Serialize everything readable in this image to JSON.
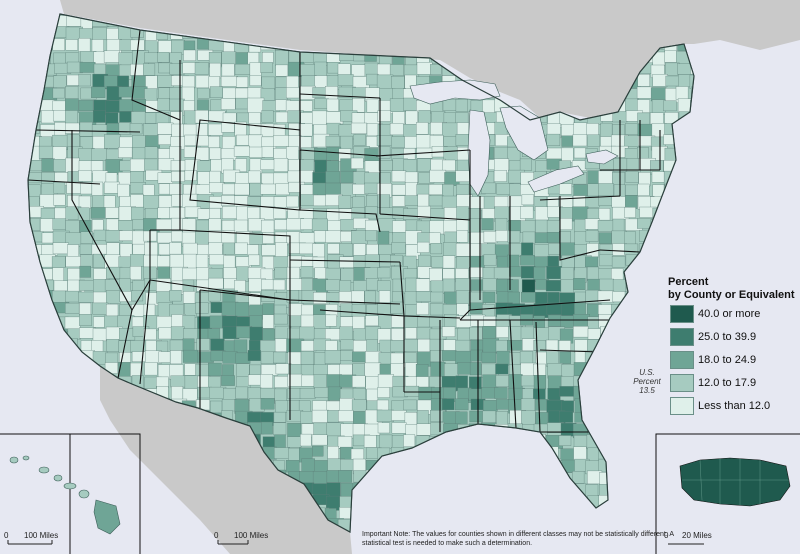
{
  "legend": {
    "title_line1": "Percent",
    "title_line2": "by County or Equivalent",
    "classes": [
      {
        "label": "40.0 or more",
        "color": "#1f5a4e"
      },
      {
        "label": "25.0 to 39.9",
        "color": "#3e7d6f"
      },
      {
        "label": "18.0 to 24.9",
        "color": "#6fa596"
      },
      {
        "label": "12.0 to 17.9",
        "color": "#a6cbc0"
      },
      {
        "label": "Less than 12.0",
        "color": "#dff0ea"
      }
    ]
  },
  "us_percent": {
    "line1": "U.S.",
    "line2": "Percent",
    "value": "13.5"
  },
  "note": "Important Note: The values for counties shown in different classes may not be statistically different.  A statistical test is needed to make such a determination.",
  "scale_bars": {
    "alaska": {
      "start": "0",
      "end": "100 Miles"
    },
    "hawaii": {
      "start": "0",
      "end": "100 Miles"
    },
    "puerto_rico": {
      "start": "0",
      "end": "20 Miles"
    }
  },
  "colors": {
    "water": "#e6e8f2",
    "foreign_land": "#c9c9c9",
    "county_border": "#5c7f78",
    "state_border": "#111111"
  }
}
